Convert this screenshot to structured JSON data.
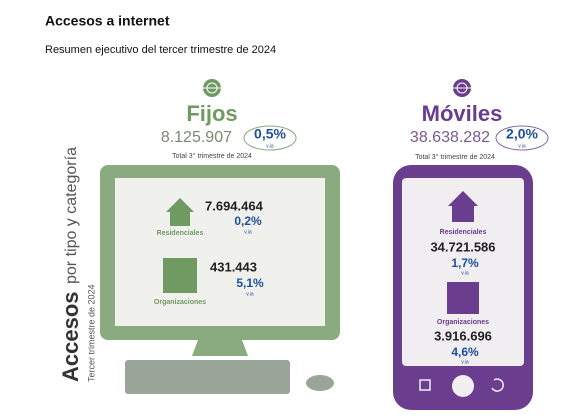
{
  "header": {
    "title": "Accesos a internet",
    "subtitle": "Resumen ejecutivo del tercer trimestre de 2024"
  },
  "side": {
    "main": "Accesos",
    "sub": "por tipo y categoría",
    "period": "Tercer trimestre de 2024"
  },
  "fijos": {
    "name": "Fijos",
    "total": "8.125.907",
    "change": "0,5%",
    "change_unit": "v.ia",
    "caption": "Total 3° trimestre de 2024",
    "categories": [
      {
        "name": "Residenciales",
        "value": "7.694.464",
        "change": "0,2%",
        "change_unit": "v.ia"
      },
      {
        "name": "Organizaciones",
        "value": "431.443",
        "change": "5,1%",
        "change_unit": "v.ia"
      }
    ]
  },
  "moviles": {
    "name": "Móviles",
    "total": "38.638.282",
    "change": "2,0%",
    "change_unit": "v.ia",
    "caption": "Total 3° trimestre de 2024",
    "categories": [
      {
        "name": "Residenciales",
        "value": "34.721.586",
        "change": "1,7%",
        "change_unit": "v.ia"
      },
      {
        "name": "Organizaciones",
        "value": "3.916.696",
        "change": "4,6%",
        "change_unit": "v.ia"
      }
    ]
  }
}
